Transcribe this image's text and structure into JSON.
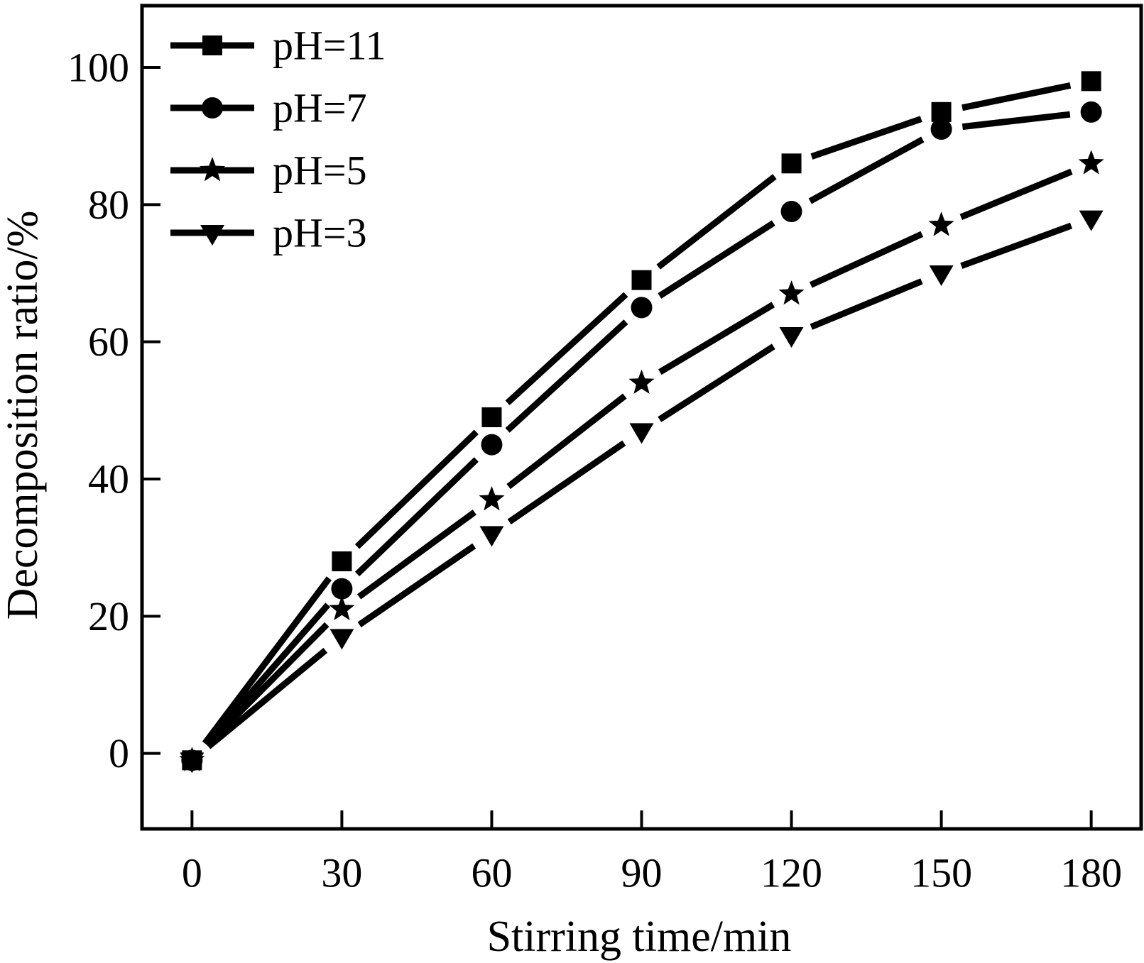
{
  "figure": {
    "background": "#ffffff",
    "ink": "#000000"
  },
  "chart_data": {
    "type": "line",
    "title": "",
    "xlabel": "Stirring time/min",
    "ylabel": "Decomposition ratio/%",
    "x": [
      0,
      30,
      60,
      90,
      120,
      150,
      180
    ],
    "series": [
      {
        "name": "pH=11",
        "marker": "square",
        "values": [
          -1,
          28,
          49,
          69,
          86,
          93.5,
          98
        ]
      },
      {
        "name": "pH=7",
        "marker": "circle",
        "values": [
          -1,
          24,
          45,
          65,
          79,
          91,
          93.5
        ]
      },
      {
        "name": "pH=5",
        "marker": "star",
        "values": [
          -1,
          21,
          37,
          54,
          67,
          77,
          86
        ]
      },
      {
        "name": "pH=3",
        "marker": "triangle-down",
        "values": [
          -1,
          17,
          32,
          47,
          61,
          70,
          78
        ]
      }
    ],
    "xticks": [
      0,
      30,
      60,
      90,
      120,
      150,
      180
    ],
    "yticks": [
      0,
      20,
      40,
      60,
      80,
      100
    ],
    "xlim": [
      -10,
      190
    ],
    "ylim": [
      -11,
      109
    ],
    "grid": false,
    "legend_position": "top-left",
    "line_color": "#000000"
  }
}
